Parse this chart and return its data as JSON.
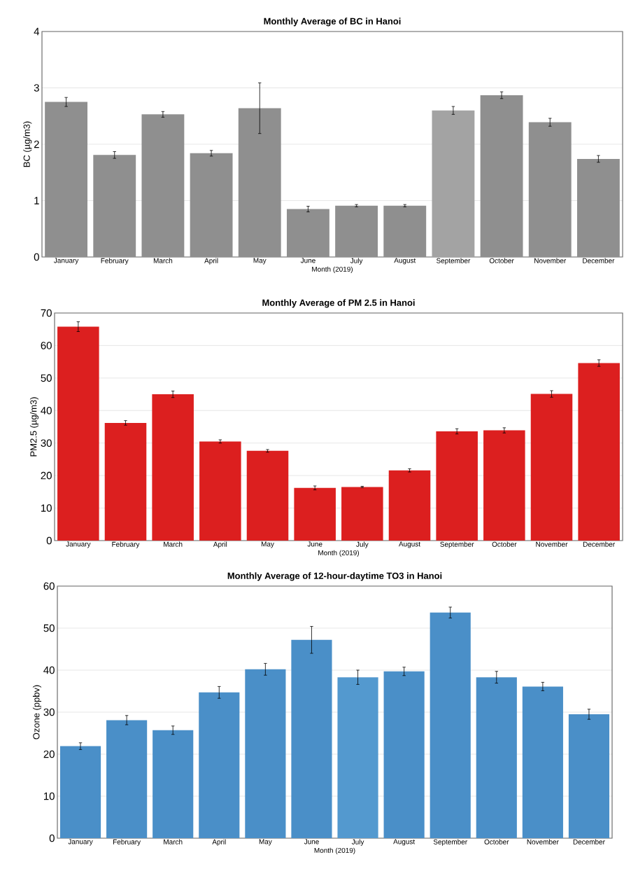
{
  "chart_data": [
    {
      "type": "bar",
      "title": "Monthly Average of BC in Hanoi",
      "xlabel": "Month (2019)",
      "ylabel": "BC (µg/m3)",
      "categories": [
        "January",
        "February",
        "March",
        "April",
        "May",
        "June",
        "July",
        "August",
        "September",
        "October",
        "November",
        "December"
      ],
      "values": [
        2.75,
        1.81,
        2.53,
        1.84,
        2.64,
        0.85,
        0.91,
        0.91,
        2.6,
        2.87,
        2.39,
        1.74
      ],
      "errors": [
        0.08,
        0.06,
        0.05,
        0.05,
        0.45,
        0.05,
        0.02,
        0.02,
        0.07,
        0.06,
        0.07,
        0.06
      ],
      "colors": [
        "#8f8f8f",
        "#8f8f8f",
        "#8f8f8f",
        "#8f8f8f",
        "#8f8f8f",
        "#8f8f8f",
        "#8f8f8f",
        "#8f8f8f",
        "#a3a3a3",
        "#8f8f8f",
        "#8f8f8f",
        "#8f8f8f"
      ],
      "ylim": [
        0,
        4
      ],
      "yticks": [
        0,
        1,
        2,
        3,
        4
      ],
      "grid": "y"
    },
    {
      "type": "bar",
      "title": "Monthly Average of PM 2.5 in Hanoi",
      "xlabel": "Month (2019)",
      "ylabel": "PM2.5 (µg/m3)",
      "categories": [
        "January",
        "February",
        "March",
        "April",
        "May",
        "June",
        "July",
        "August",
        "September",
        "October",
        "November",
        "December"
      ],
      "values": [
        65.8,
        36.2,
        45.0,
        30.5,
        27.6,
        16.2,
        16.5,
        21.6,
        33.6,
        33.9,
        45.1,
        54.6
      ],
      "errors": [
        1.5,
        0.7,
        1.0,
        0.5,
        0.4,
        0.6,
        0.2,
        0.5,
        0.8,
        0.8,
        1.0,
        1.0
      ],
      "colors": [
        "#dc1f1f",
        "#dc1f1f",
        "#dc1f1f",
        "#dc1f1f",
        "#dc1f1f",
        "#dc1f1f",
        "#dc1f1f",
        "#dc1f1f",
        "#dc1f1f",
        "#dc1f1f",
        "#dc1f1f",
        "#dc1f1f"
      ],
      "ylim": [
        0,
        70
      ],
      "yticks": [
        0,
        10,
        20,
        30,
        40,
        50,
        60,
        70
      ],
      "grid": "y"
    },
    {
      "type": "bar",
      "title": "Monthly Average of 12-hour-daytime TO3 in Hanoi",
      "xlabel": "Month (2019)",
      "ylabel": "Ozone (ppbv)",
      "categories": [
        "January",
        "February",
        "March",
        "April",
        "May",
        "June",
        "July",
        "August",
        "September",
        "October",
        "November",
        "December"
      ],
      "values": [
        21.9,
        28.1,
        25.7,
        34.7,
        40.2,
        47.2,
        38.3,
        39.7,
        53.7,
        38.3,
        36.1,
        29.5
      ],
      "errors": [
        0.8,
        1.1,
        1.0,
        1.4,
        1.4,
        3.2,
        1.7,
        1.0,
        1.3,
        1.4,
        1.0,
        1.2
      ],
      "colors": [
        "#4a8fc8",
        "#4a8fc8",
        "#4a8fc8",
        "#4a8fc8",
        "#4a8fc8",
        "#4a8fc8",
        "#5399cf",
        "#4a8fc8",
        "#4a8fc8",
        "#4a8fc8",
        "#4a8fc8",
        "#4a8fc8"
      ],
      "ylim": [
        0,
        60
      ],
      "yticks": [
        0,
        10,
        20,
        30,
        40,
        50,
        60
      ],
      "grid": "y"
    }
  ]
}
